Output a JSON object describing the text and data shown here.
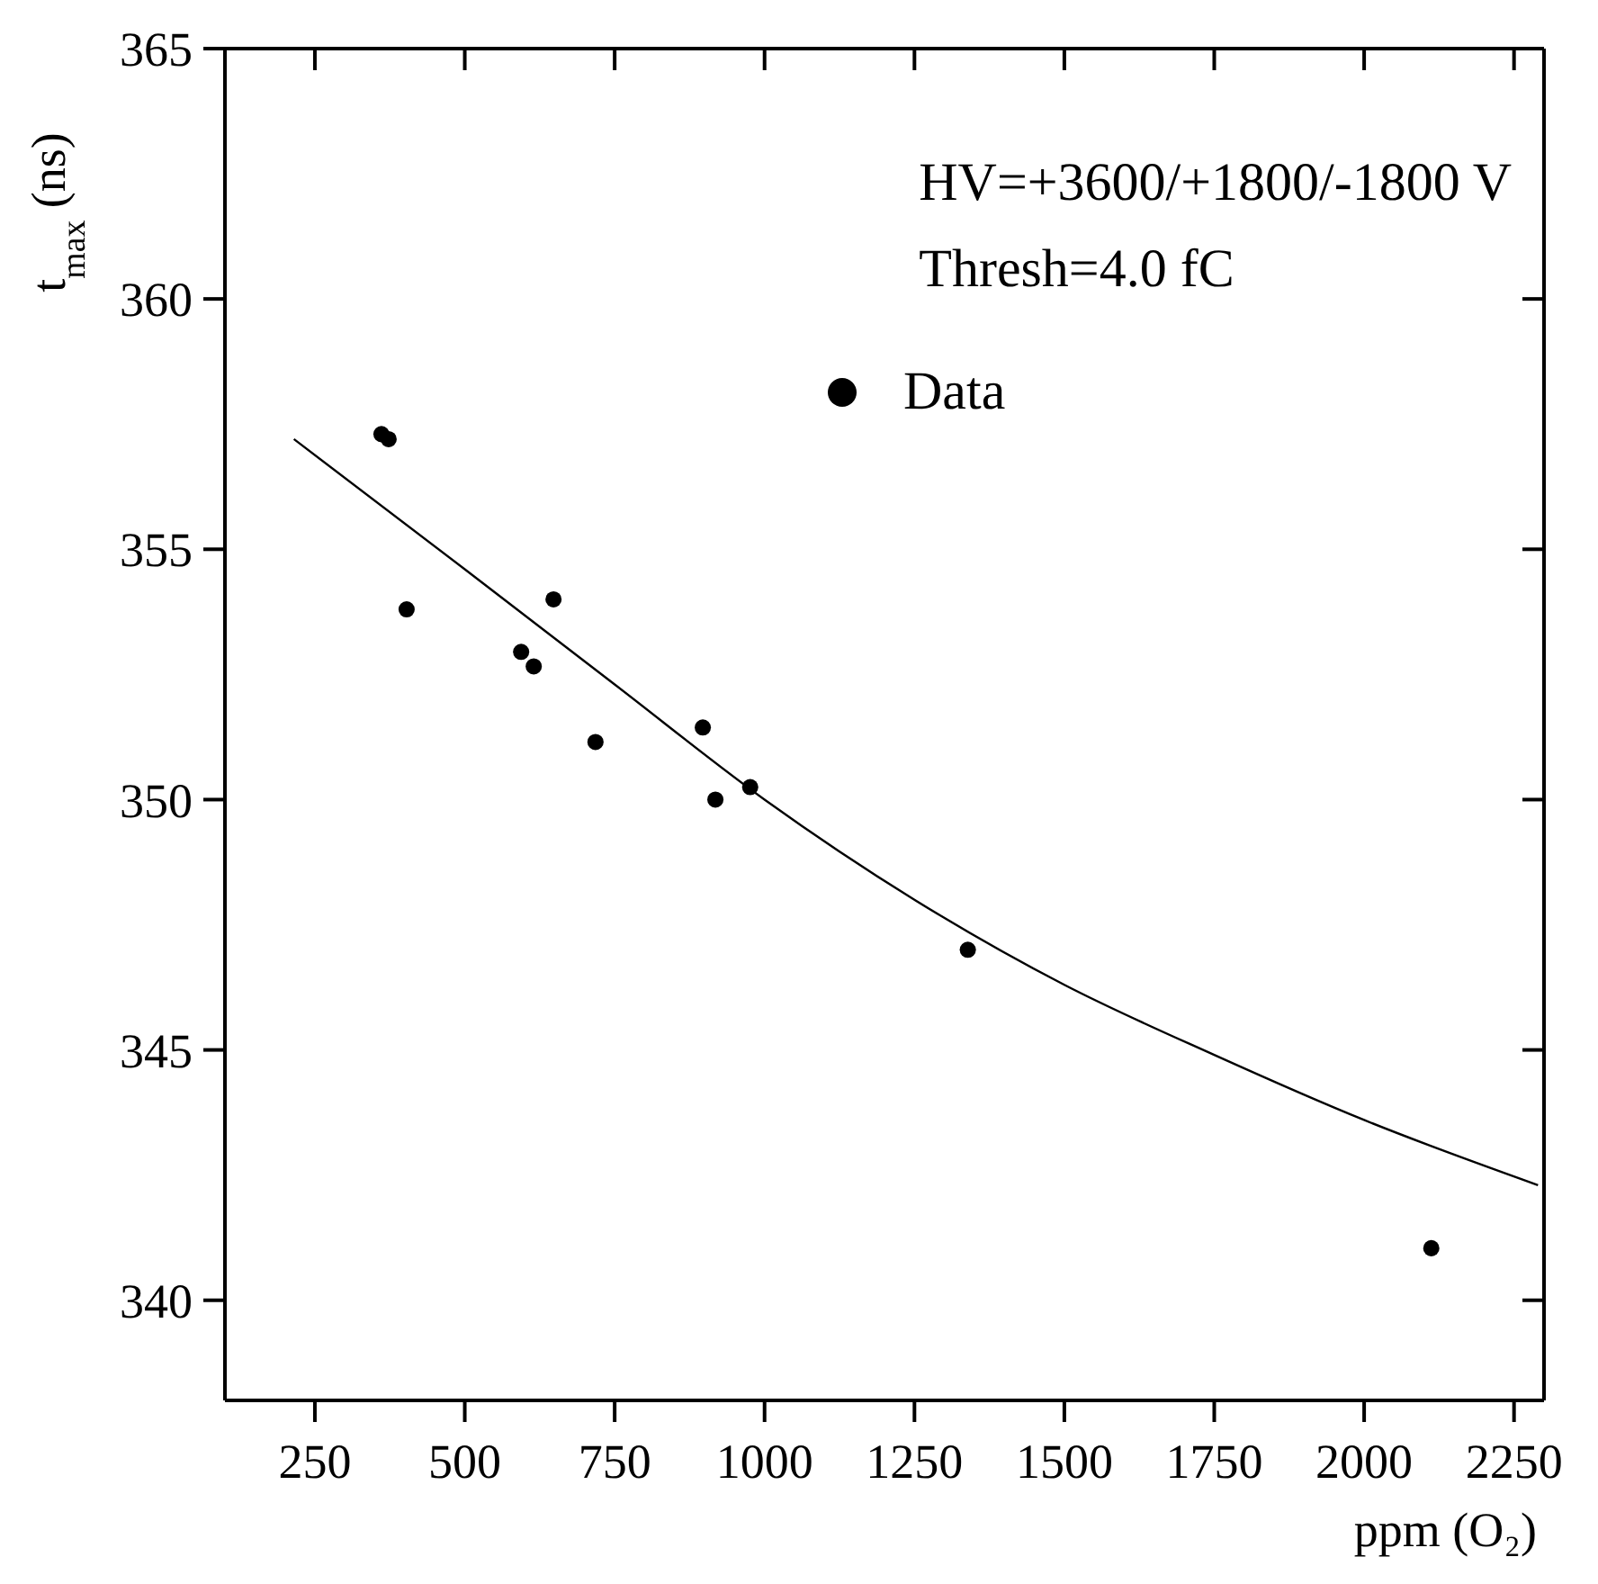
{
  "chart_data": {
    "type": "scatter",
    "xlabel": "ppm (O₂)",
    "ylabel": "t$_{max}$ (ns)",
    "annotations": [
      "HV=+3600/+1800/-1800 V",
      "Thresh=4.0 fC"
    ],
    "xlim": [
      100,
      2300
    ],
    "xticks": [
      250,
      500,
      750,
      1000,
      1250,
      1500,
      1750,
      2000,
      2250
    ],
    "ylim": [
      338,
      365
    ],
    "yticks": [
      340,
      345,
      350,
      355,
      360,
      365
    ],
    "legend": "top right",
    "marker": "circle",
    "series": [
      {
        "name": "Data",
        "color": "#000000",
        "x": [
          361,
          373,
          403,
          594,
          615,
          648,
          718,
          897,
          918,
          976,
          1339,
          2112
        ],
        "values": [
          357.3,
          357.2,
          353.8,
          352.95,
          352.66,
          354.0,
          351.15,
          351.44,
          350.0,
          350.25,
          347.0,
          341.04
        ]
      },
      {
        "type": "line",
        "color": "#000000",
        "marker": "none",
        "line_style": "solid",
        "x": [
          215,
          500,
          750,
          1000,
          1250,
          1500,
          1750,
          2000,
          2290
        ],
        "values": [
          357.2,
          354.6,
          352.3,
          350.0,
          348.0,
          346.3,
          344.9,
          343.6,
          342.3
        ]
      }
    ]
  }
}
